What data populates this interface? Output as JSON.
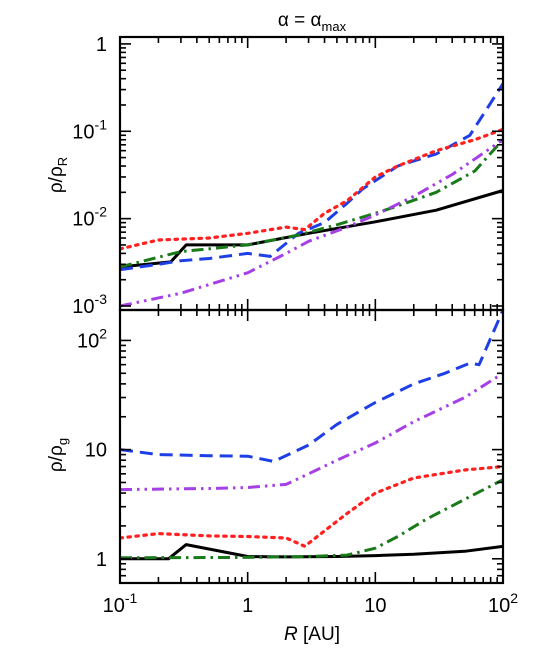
{
  "figure": {
    "title_base": "α = α",
    "title_sub": "max"
  },
  "chart_data": [
    {
      "type": "line",
      "panel": "top",
      "ylabel_base": "ρ/ρ",
      "ylabel_sub": "R",
      "xscale": "log",
      "yscale": "log",
      "xlim": [
        0.1,
        100
      ],
      "ylim": [
        0.0009,
        1.2
      ],
      "yticks": [
        {
          "value": 0.001,
          "base": "10",
          "exp": "-3"
        },
        {
          "value": 0.01,
          "base": "10",
          "exp": "-2"
        },
        {
          "value": 0.1,
          "base": "10",
          "exp": "-1"
        },
        {
          "value": 1,
          "base": "1",
          "exp": ""
        }
      ],
      "grid": false,
      "series": [
        {
          "style": "solid",
          "color": "#000000",
          "x": [
            0.1,
            0.25,
            0.33,
            1.0,
            3.0,
            10,
            30,
            100
          ],
          "y": [
            0.0028,
            0.0032,
            0.005,
            0.005,
            0.0068,
            0.0092,
            0.0125,
            0.021
          ]
        },
        {
          "style": "dashed",
          "color": "#1f3fe6",
          "x": [
            0.1,
            0.2,
            0.3,
            0.5,
            1.0,
            1.5,
            2.5,
            4,
            6,
            8,
            15,
            30,
            55,
            100
          ],
          "y": [
            0.0026,
            0.003,
            0.0033,
            0.0035,
            0.004,
            0.0037,
            0.0068,
            0.009,
            0.015,
            0.022,
            0.04,
            0.055,
            0.09,
            0.35
          ]
        },
        {
          "style": "dotted",
          "color": "#ff2020",
          "x": [
            0.1,
            0.2,
            0.5,
            1.0,
            2.0,
            2.8,
            4,
            6,
            10,
            15,
            30,
            60,
            100
          ],
          "y": [
            0.0045,
            0.0057,
            0.006,
            0.0068,
            0.008,
            0.0075,
            0.0115,
            0.016,
            0.03,
            0.04,
            0.06,
            0.08,
            0.105
          ]
        },
        {
          "style": "dashdot",
          "color": "#1a7a1a",
          "x": [
            0.1,
            0.3,
            1.0,
            2.5,
            5,
            10,
            15,
            30,
            60,
            100
          ],
          "y": [
            0.0028,
            0.0042,
            0.005,
            0.0065,
            0.0085,
            0.0115,
            0.014,
            0.02,
            0.035,
            0.08
          ]
        },
        {
          "style": "dashdotdot",
          "color": "#a640e6",
          "x": [
            0.1,
            0.3,
            1.0,
            2.0,
            3.0,
            6,
            10,
            20,
            40,
            100
          ],
          "y": [
            0.001,
            0.0014,
            0.0024,
            0.004,
            0.0055,
            0.008,
            0.011,
            0.018,
            0.032,
            0.08
          ]
        }
      ]
    },
    {
      "type": "line",
      "panel": "bottom",
      "ylabel_base": "ρ/ρ",
      "ylabel_sub": "g",
      "xlabel_italic": "R",
      "xlabel_rest": " [AU]",
      "xscale": "log",
      "yscale": "log",
      "xlim": [
        0.1,
        100
      ],
      "ylim": [
        0.6,
        190
      ],
      "xticks": [
        {
          "value": 0.1,
          "base": "10",
          "exp": "-1"
        },
        {
          "value": 1,
          "base": "1",
          "exp": ""
        },
        {
          "value": 10,
          "base": "10",
          "exp": ""
        },
        {
          "value": 100,
          "base": "10",
          "exp": "2"
        }
      ],
      "yticks": [
        {
          "value": 1,
          "base": "1",
          "exp": ""
        },
        {
          "value": 10,
          "base": "10",
          "exp": ""
        },
        {
          "value": 100,
          "base": "10",
          "exp": "2"
        }
      ],
      "grid": false,
      "series": [
        {
          "style": "solid",
          "color": "#000000",
          "x": [
            0.1,
            0.24,
            0.33,
            1.0,
            2.0,
            5,
            10,
            20,
            50,
            100
          ],
          "y": [
            1.0,
            1.0,
            1.35,
            1.05,
            1.04,
            1.05,
            1.07,
            1.1,
            1.17,
            1.3
          ]
        },
        {
          "style": "dashed",
          "color": "#1f3fe6",
          "x": [
            0.1,
            0.2,
            0.5,
            1.0,
            1.6,
            3.0,
            5,
            10,
            20,
            35,
            55,
            65,
            100
          ],
          "y": [
            10,
            9.0,
            8.8,
            8.7,
            7.8,
            11,
            17,
            27,
            40,
            50,
            62,
            60,
            190
          ]
        },
        {
          "style": "dotted",
          "color": "#ff2020",
          "x": [
            0.1,
            0.2,
            0.5,
            1.0,
            2.0,
            2.8,
            4,
            6,
            10,
            20,
            50,
            100
          ],
          "y": [
            1.55,
            1.7,
            1.62,
            1.6,
            1.55,
            1.3,
            1.8,
            2.6,
            4.0,
            5.5,
            6.5,
            7.0
          ]
        },
        {
          "style": "dashdot",
          "color": "#1a7a1a",
          "x": [
            0.1,
            1.0,
            3.0,
            6,
            10,
            15,
            25,
            50,
            100
          ],
          "y": [
            1.02,
            1.03,
            1.05,
            1.08,
            1.25,
            1.6,
            2.3,
            3.5,
            5.3
          ]
        },
        {
          "style": "dashdotdot",
          "color": "#a640e6",
          "x": [
            0.1,
            0.5,
            1.0,
            2.0,
            3.0,
            5,
            10,
            20,
            50,
            100
          ],
          "y": [
            4.3,
            4.4,
            4.5,
            4.8,
            6.0,
            8.0,
            11.5,
            18,
            30,
            50
          ]
        }
      ]
    }
  ]
}
